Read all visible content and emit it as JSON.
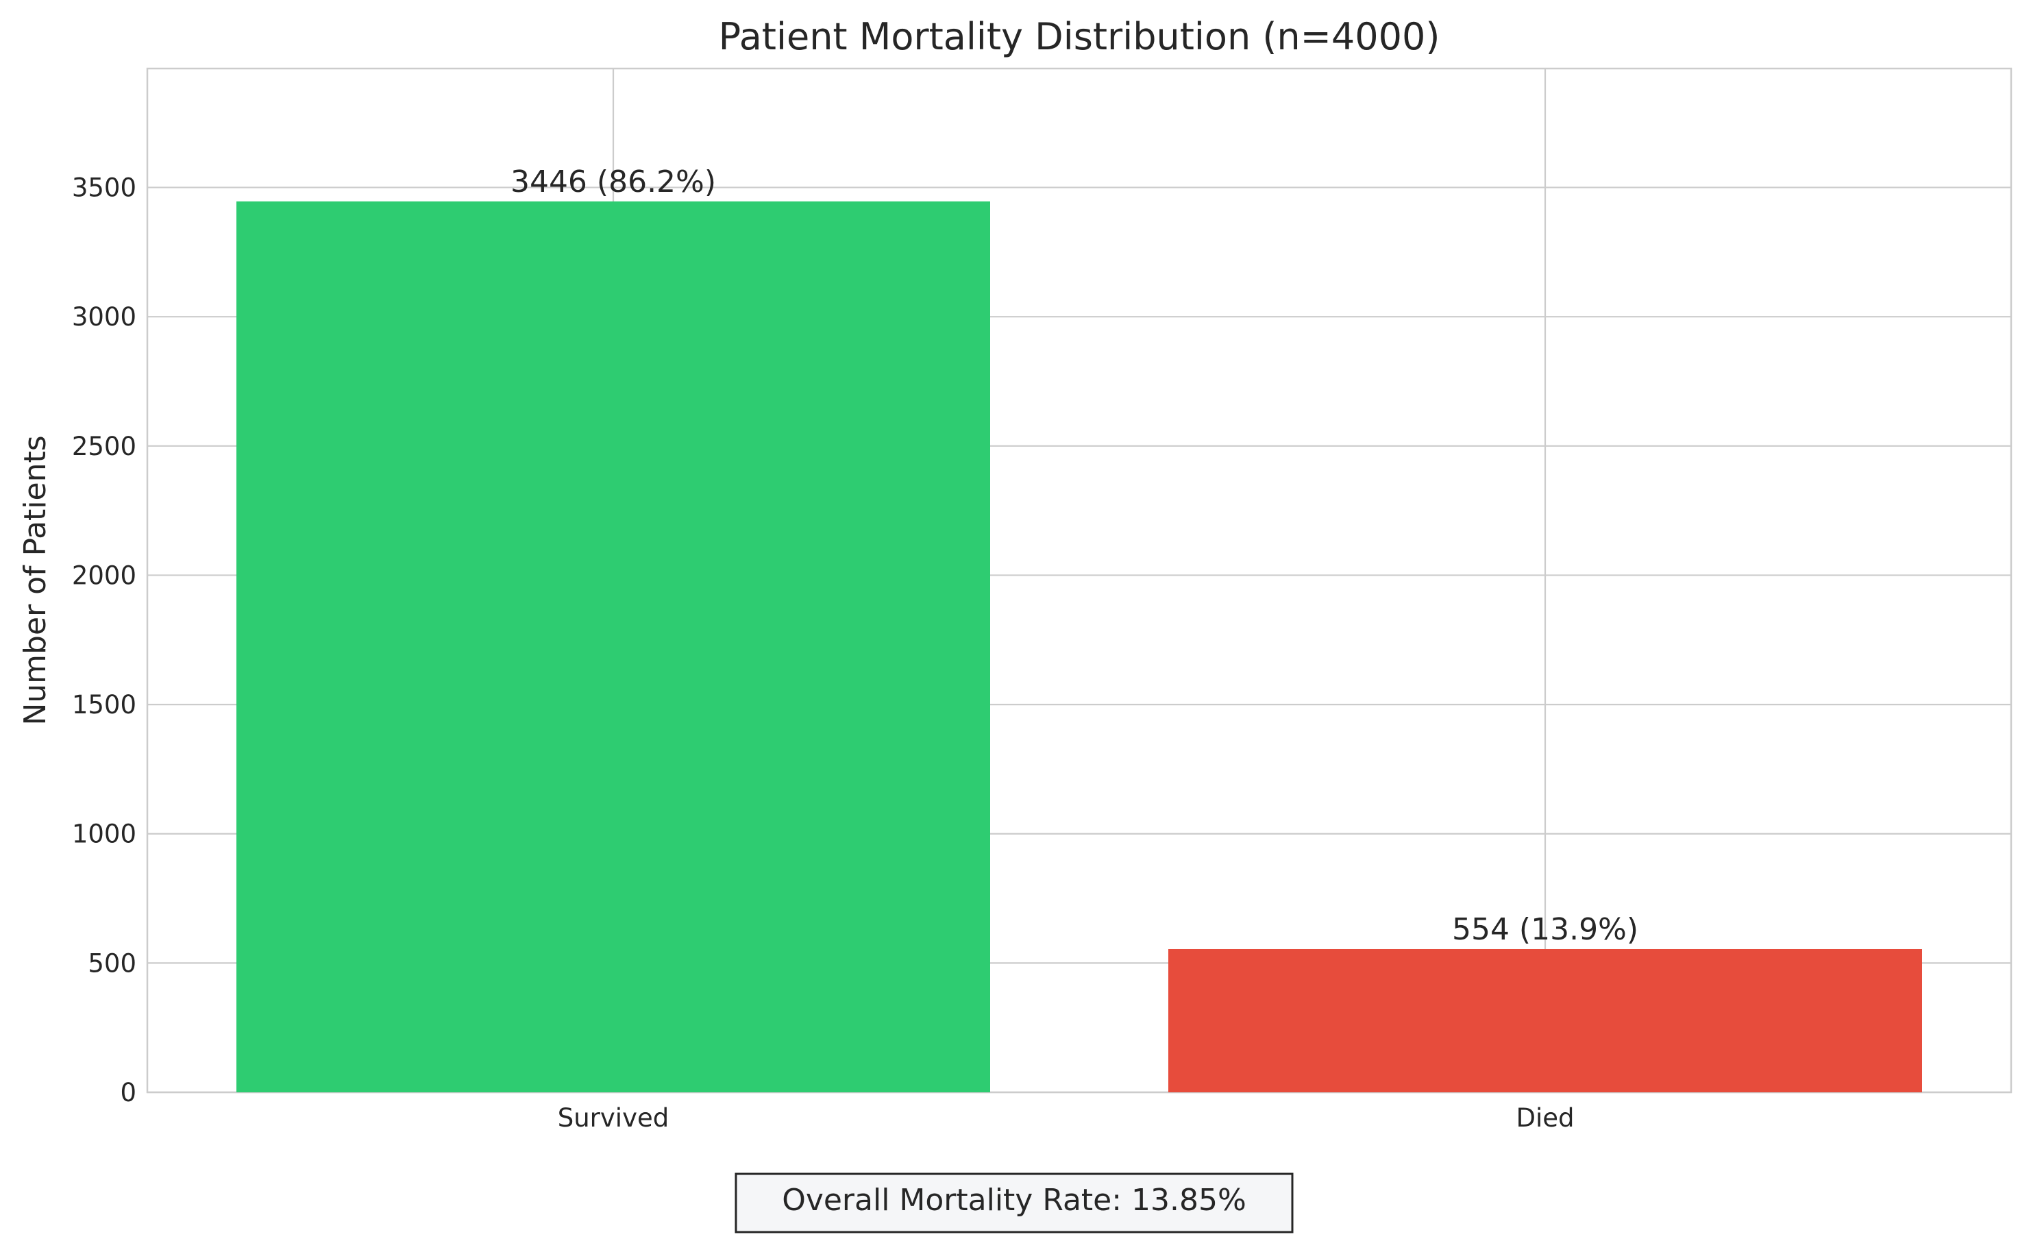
{
  "chart_data": {
    "type": "bar",
    "title": "Patient Mortality Distribution (n=4000)",
    "xlabel": "",
    "ylabel": "Number of Patients",
    "categories": [
      "Survived",
      "Died"
    ],
    "values": [
      3446,
      554
    ],
    "value_labels": [
      "3446 (86.2%)",
      "554 (13.9%)"
    ],
    "colors": [
      "#2ecc71",
      "#e74c3c"
    ],
    "ylim": [
      0,
      3960
    ],
    "yticks": [
      0,
      500,
      1000,
      1500,
      2000,
      2500,
      3000,
      3500
    ],
    "grid": true,
    "legend": "none",
    "annotation": "Overall Mortality Rate: 13.85%"
  },
  "style": {
    "grid_color": "#cccccc",
    "spine_color": "#cccccc",
    "text_color": "#262626",
    "footer_box_fill": "#f5f6f8",
    "footer_box_stroke": "#262626"
  }
}
